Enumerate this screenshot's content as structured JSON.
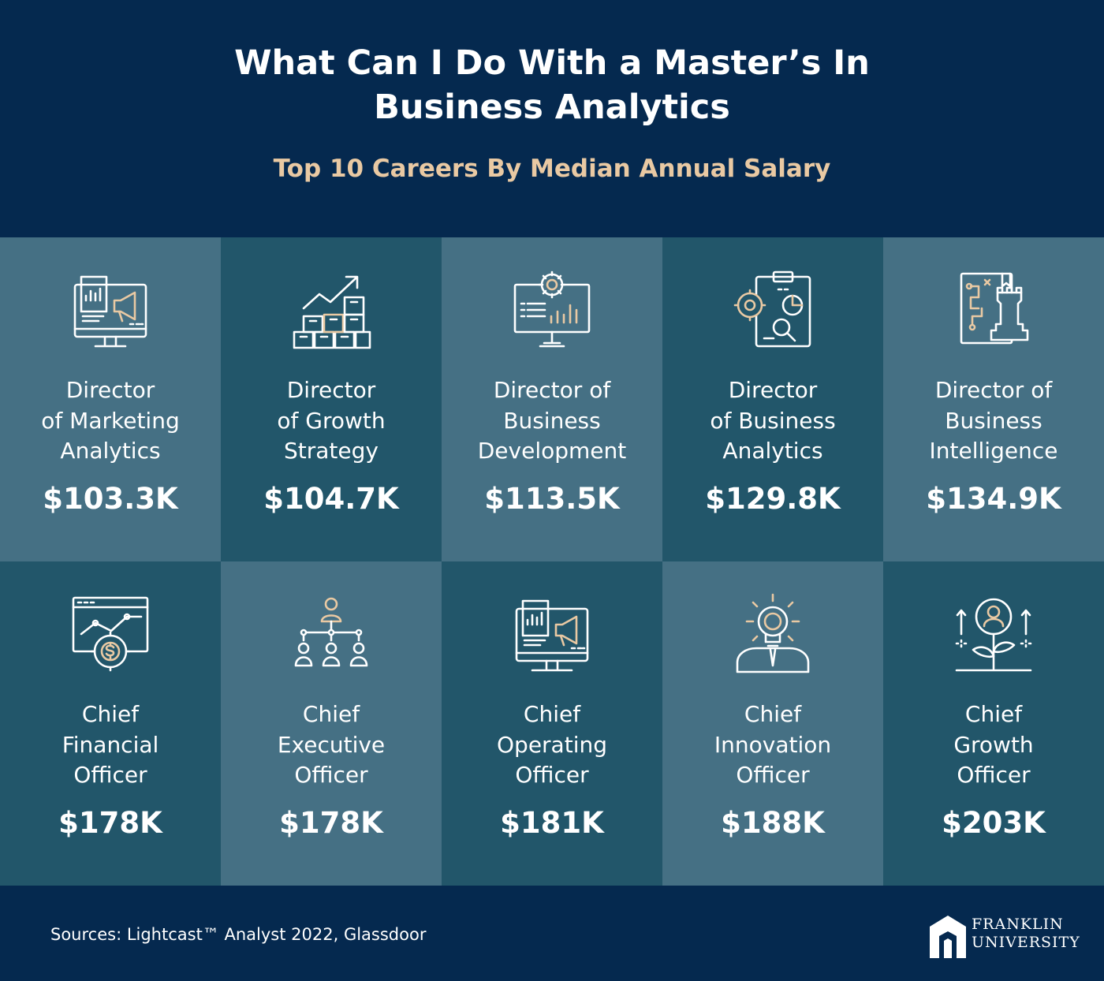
{
  "header": {
    "title_line1": "What Can I Do With a Master’s In",
    "title_line2": "Business Analytics",
    "subtitle": "Top 10 Careers By Median Annual Salary"
  },
  "colors": {
    "background": "#05294f",
    "tile_light": "#457084",
    "tile_dark": "#22566a",
    "accent": "#e9c9a3"
  },
  "careers": [
    {
      "lines": [
        "Director",
        "of Marketing",
        "Analytics"
      ],
      "salary": "$103.3K",
      "icon": "marketing-monitor-megaphone-icon"
    },
    {
      "lines": [
        "Director",
        "of Growth",
        "Strategy"
      ],
      "salary": "$104.7K",
      "icon": "growth-boxes-arrow-icon"
    },
    {
      "lines": [
        "Director of",
        "Business",
        "Development"
      ],
      "salary": "$113.5K",
      "icon": "development-gear-presentation-icon"
    },
    {
      "lines": [
        "Director",
        "of Business",
        "Analytics"
      ],
      "salary": "$129.8K",
      "icon": "analytics-clipboard-gear-icon"
    },
    {
      "lines": [
        "Director of",
        "Business",
        "Intelligence"
      ],
      "salary": "$134.9K",
      "icon": "intelligence-chess-strategy-icon"
    },
    {
      "lines": [
        "Chief",
        "Financial",
        "Officer"
      ],
      "salary": "$178K",
      "icon": "finance-chart-dollar-gear-icon"
    },
    {
      "lines": [
        "Chief",
        "Executive",
        "Officer"
      ],
      "salary": "$178K",
      "icon": "executive-org-chart-icon"
    },
    {
      "lines": [
        "Chief",
        "Operating",
        "Officer"
      ],
      "salary": "$181K",
      "icon": "operations-monitor-megaphone-icon"
    },
    {
      "lines": [
        "Chief",
        "Innovation",
        "Officer"
      ],
      "salary": "$188K",
      "icon": "innovation-lightbulb-person-icon"
    },
    {
      "lines": [
        "Chief",
        "Growth",
        "Officer"
      ],
      "salary": "$203K",
      "icon": "growth-plant-person-icon"
    }
  ],
  "footer": {
    "sources": "Sources: Lightcast™ Analyst 2022, Glassdoor",
    "logo_line1": "FRANKLIN",
    "logo_line2": "UNIVERSITY"
  }
}
